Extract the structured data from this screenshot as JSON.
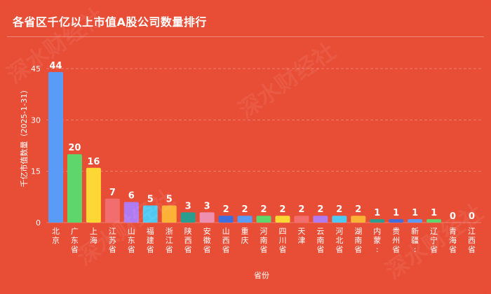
{
  "title": "各省区千亿以上市值A股公司数量排行",
  "chart_data": {
    "type": "bar",
    "ylabel": "千亿市值数量（2025-1-31）",
    "xlabel": "省份",
    "ylim": [
      0,
      45
    ],
    "yticks": [
      0,
      15,
      30,
      45
    ],
    "categories": [
      "北京",
      "广东省",
      "上海",
      "江苏省",
      "山东省",
      "福建省",
      "浙江省",
      "陕西省",
      "安徽省",
      "山西省",
      "重庆",
      "河南省",
      "四川省",
      "天津",
      "云南省",
      "河北省",
      "湖南省",
      "内蒙古",
      "贵州省",
      "新疆",
      "辽宁省",
      "青海省",
      "江西省"
    ],
    "tick_labels": [
      "北京",
      "广东省",
      "上海",
      "江苏省",
      "山东省",
      "福建省",
      "浙江省",
      "陕西省",
      "安徽省",
      "山西省",
      "重庆",
      "河南省",
      "四川省",
      "天津",
      "云南省",
      "河北省",
      "湖南省",
      "内蒙:",
      "贵州省",
      "新疆:",
      "辽宁省",
      "青海省",
      "江西省"
    ],
    "values": [
      44,
      20,
      16,
      7,
      6,
      5,
      5,
      3,
      3,
      2,
      2,
      2,
      2,
      2,
      2,
      2,
      2,
      1,
      1,
      1,
      1,
      0,
      0
    ],
    "colors": [
      "#5b9bf8",
      "#5ed66c",
      "#fdd835",
      "#f26d6d",
      "#b07af0",
      "#4fc9f2",
      "#fbb237",
      "#2a9d8f",
      "#ef8fb0",
      "#3f6fdf",
      "#5b9bf8",
      "#5ed66c",
      "#fdd835",
      "#f26d6d",
      "#b07af0",
      "#4fc9f2",
      "#fbb237",
      "#2a9d8f",
      "#3f6fdf",
      "#5b9bf8",
      "#5ed66c",
      "#fdd835",
      "#f26d6d"
    ],
    "grid": true
  },
  "watermark": "深水财经社"
}
